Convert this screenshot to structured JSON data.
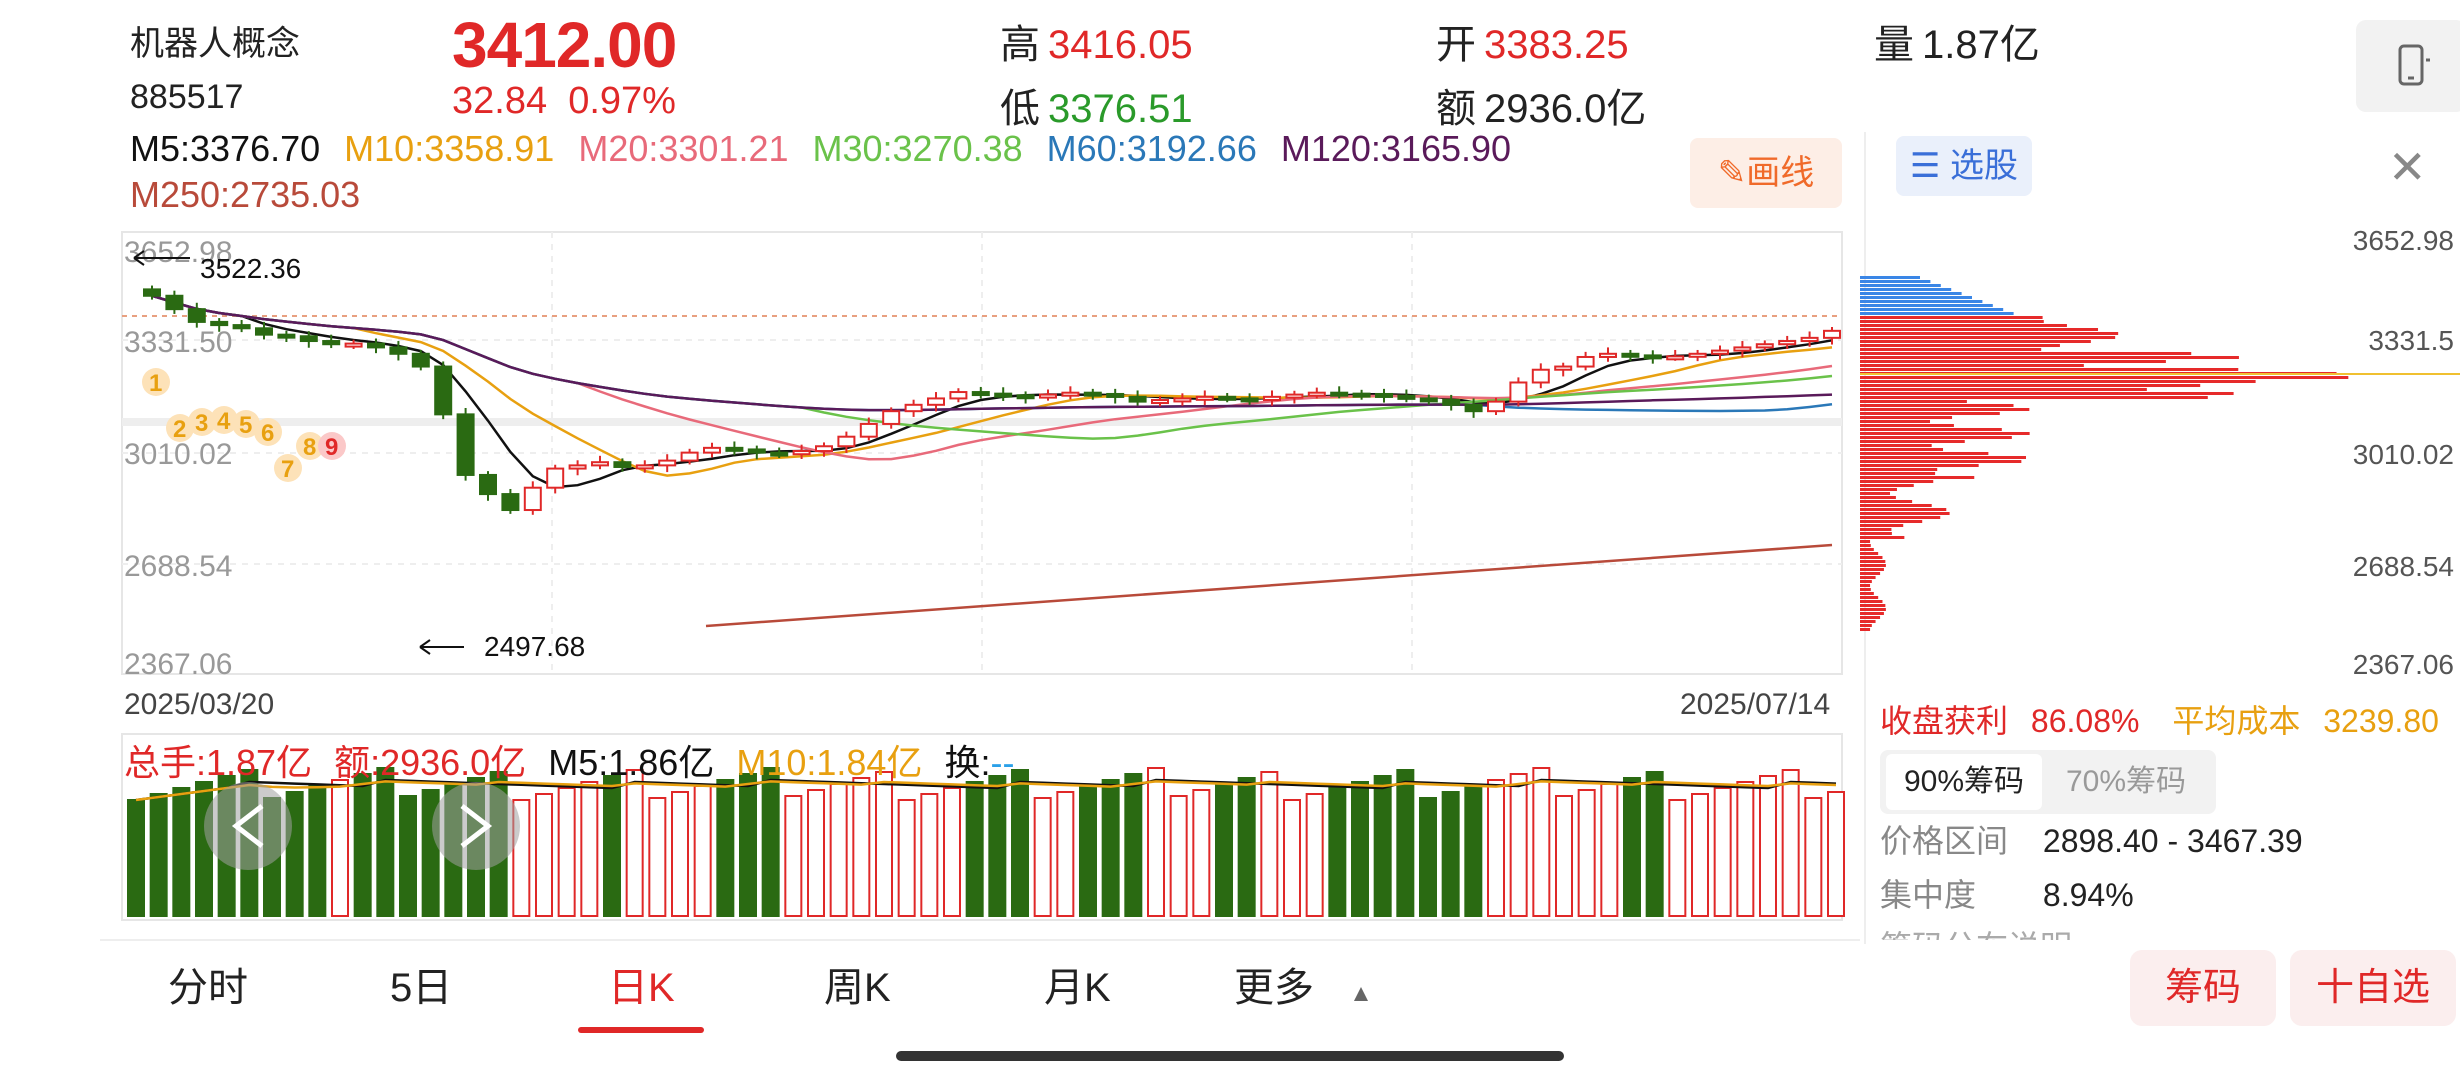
{
  "header": {
    "name": "机器人概念",
    "code": "885517",
    "price": "3412.00",
    "change": "32.84",
    "change_pct": "0.97%",
    "high_label": "高",
    "high": "3416.05",
    "low_label": "低",
    "low": "3376.51",
    "open_label": "开",
    "open": "3383.25",
    "amount_label": "额",
    "amount": "2936.0亿",
    "volume_label": "量",
    "volume": "1.87亿"
  },
  "ma": {
    "m5": "M5:3376.70",
    "m10": "M10:3358.91",
    "m20": "M20:3301.21",
    "m30": "M30:3270.38",
    "m60": "M60:3192.66",
    "m120": "M120:3165.90",
    "m250": "M250:2735.03"
  },
  "draw_button": "画线",
  "price_axis": [
    "3652.98",
    "3331.50",
    "3010.02",
    "2688.54",
    "2367.06"
  ],
  "annotations": {
    "high_mark": "3522.36",
    "low_mark": "2497.68"
  },
  "dates": {
    "start": "2025/03/20",
    "end": "2025/07/14"
  },
  "nine_turn": [
    "1",
    "2",
    "3",
    "4",
    "5",
    "6",
    "7",
    "8",
    "9"
  ],
  "volume": {
    "total": "总手:1.87亿",
    "amount": "额:2936.0亿",
    "m5": "M5:1.86亿",
    "m10": "M10:1.84亿",
    "turnover_label": "换:",
    "turnover": "--"
  },
  "tabs": [
    "分时",
    "5日",
    "日K",
    "周K",
    "月K",
    "更多"
  ],
  "active_tab": "日K",
  "right_panel": {
    "select_button": "选股",
    "axis": [
      "3652.98",
      "3331.5",
      "3010.02",
      "2688.54",
      "2367.06"
    ],
    "profit_label": "收盘获利",
    "profit": "86.08%",
    "avg_cost_label": "平均成本",
    "avg_cost": "3239.80",
    "chip_tab_90": "90%筹码",
    "chip_tab_70": "70%筹码",
    "range_label": "价格区间",
    "range": "2898.40 - 3467.39",
    "concentration_label": "集中度",
    "concentration": "8.94%",
    "note": "筹码分布说明"
  },
  "bottom_buttons": {
    "chips": "筹码",
    "add_fav": "十自选"
  },
  "colors": {
    "up": "#e02828",
    "down": "#2a6a12",
    "m5": "#111111",
    "m10": "#e8a010",
    "m20": "#e86a7a",
    "m30": "#6ac24a",
    "m60": "#2a78b8",
    "m120": "#5a1a5a",
    "m250": "#b84a3a"
  }
}
